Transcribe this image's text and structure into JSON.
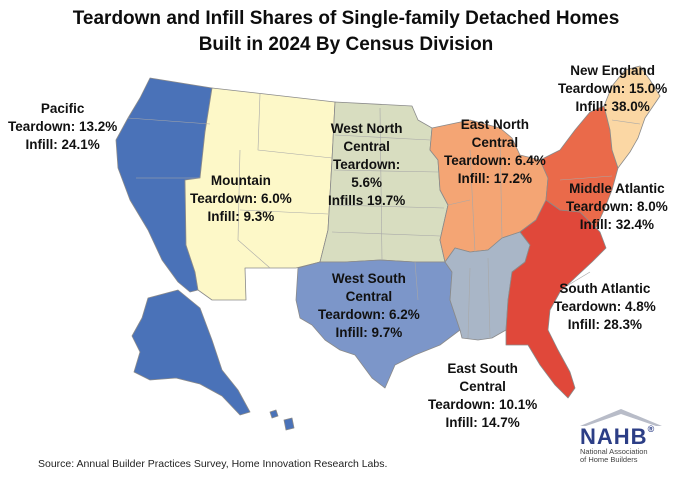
{
  "title_line1": "Teardown and Infill Shares of Single-family Detached Homes",
  "title_line2": "Built in 2024 By Census Division",
  "colors": {
    "pacific": "#4a72b8",
    "mountain": "#fdf8c8",
    "west_north_central": "#d8ddc0",
    "east_north_central": "#f4a574",
    "new_england": "#fbd7a4",
    "middle_atlantic": "#ea6a4a",
    "south_atlantic": "#e0483a",
    "east_south_central": "#a9b6c7",
    "west_south_central": "#7c96c9",
    "nahb_brand": "#2c3e86"
  },
  "regions": {
    "pacific": {
      "name": "Pacific",
      "teardown": "Teardown: 13.2%",
      "infill": "Infill: 24.1%"
    },
    "mountain": {
      "name": "Mountain",
      "teardown": "Teardown: 6.0%",
      "infill": "Infill: 9.3%"
    },
    "west_north_central": {
      "name1": "West North",
      "name2": "Central",
      "teardown": "Teardown:",
      "teardown_val": "5.6%",
      "infill": "Infills 19.7%"
    },
    "east_north_central": {
      "name1": "East North",
      "name2": "Central",
      "teardown": "Teardown: 6.4%",
      "infill": "Infill: 17.2%"
    },
    "new_england": {
      "name": "New England",
      "teardown": "Teardown: 15.0%",
      "infill": "Infill: 38.0%"
    },
    "middle_atlantic": {
      "name": "Middle Atlantic",
      "teardown": "Teardown: 8.0%",
      "infill": "Infill: 32.4%"
    },
    "south_atlantic": {
      "name": "South Atlantic",
      "teardown": "Teardown: 4.8%",
      "infill": "Infill: 28.3%"
    },
    "west_south_central": {
      "name1": "West South",
      "name2": "Central",
      "teardown": "Teardown: 6.2%",
      "infill": "Infill: 9.7%"
    },
    "east_south_central": {
      "name1": "East South",
      "name2": "Central",
      "teardown": "Teardown: 10.1%",
      "infill": "Infill: 14.7%"
    }
  },
  "source": "Source: Annual Builder Practices Survey, Home Innovation Research Labs.",
  "logo": {
    "word": "NAHB",
    "reg": "®",
    "line1": "National Association",
    "line2": "of Home Builders"
  }
}
